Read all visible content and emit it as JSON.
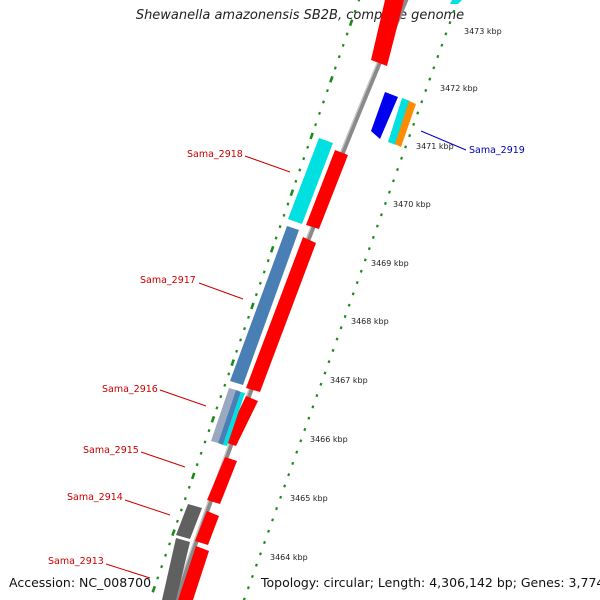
{
  "title": "Shewanella amazonensis SB2B, complete genome",
  "accession": "Accession: NC_008700",
  "topology": "Topology: circular; Length: 4,306,142 bp; Genes: 3,774",
  "colors": {
    "backbone": "#8a8a8a",
    "ruler": "#1a8a1a",
    "forward_cds": "#ff0000",
    "label_reverse": "#cc0000",
    "label_forward": "#0000bb",
    "steel": "#4a7fb5",
    "cyan": "#00e0e0",
    "blue": "#0000ee",
    "orange": "#ff8c00",
    "gray": "#606060",
    "light_steel": "#9aa8c0"
  },
  "ruler_labels": [
    "3464 kbp",
    "3465 kbp",
    "3466 kbp",
    "3467 kbp",
    "3468 kbp",
    "3469 kbp",
    "3470 kbp",
    "3471 kbp",
    "3472 kbp",
    "3473 kbp"
  ],
  "gene_labels": [
    {
      "id": "sama-2913",
      "text": "Sama_2913",
      "strand": "reverse"
    },
    {
      "id": "sama-2914",
      "text": "Sama_2914",
      "strand": "reverse"
    },
    {
      "id": "sama-2915",
      "text": "Sama_2915",
      "strand": "reverse"
    },
    {
      "id": "sama-2916",
      "text": "Sama_2916",
      "strand": "reverse"
    },
    {
      "id": "sama-2917",
      "text": "Sama_2917",
      "strand": "reverse"
    },
    {
      "id": "sama-2918",
      "text": "Sama_2918",
      "strand": "reverse"
    },
    {
      "id": "sama-2919",
      "text": "Sama_2919",
      "strand": "forward"
    }
  ]
}
